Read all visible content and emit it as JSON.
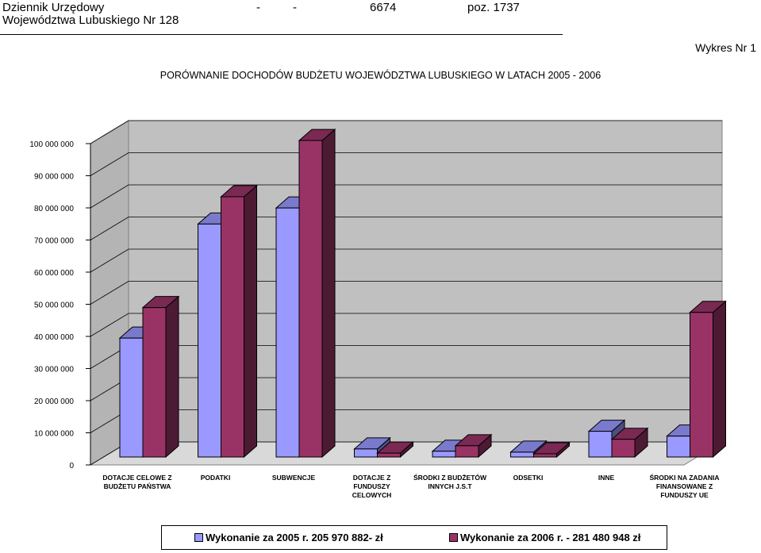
{
  "header": {
    "journal": "Dziennik Urzędowy",
    "voivodeship": "Województwa Lubuskiego Nr 128",
    "dash1": "-",
    "dash2": "-",
    "page": "6674",
    "position": "poz. 1737"
  },
  "chart_id": "Wykres Nr 1",
  "chart_data": {
    "type": "bar",
    "title": "PORÓWNANIE DOCHODÓW BUDŻETU WOJEWÓDZTWA LUBUSKIEGO W LATACH 2005 - 2006",
    "xlabel": "",
    "ylabel": "",
    "ylim": [
      0,
      100000000
    ],
    "yticks": [
      0,
      10000000,
      20000000,
      30000000,
      40000000,
      50000000,
      60000000,
      70000000,
      80000000,
      90000000,
      100000000
    ],
    "ytick_labels": [
      "0",
      "10 000 000",
      "20 000 000",
      "30 000 000",
      "40 000 000",
      "50 000 000",
      "60 000 000",
      "70 000 000",
      "80 000 000",
      "90 000 000",
      "100 000 000"
    ],
    "grid": true,
    "legend_position": "bottom",
    "categories": [
      [
        "DOTACJE CELOWE Z",
        "BUDŻETU PAŃSTWA"
      ],
      [
        "PODATKI"
      ],
      [
        "SUBWENCJE"
      ],
      [
        "DOTACJE Z",
        "FUNDUSZY",
        "CELOWYCH"
      ],
      [
        "ŚRODKI Z BUDŻETÓW",
        "INNYCH J.S.T"
      ],
      [
        "ODSETKI"
      ],
      [
        "INNE"
      ],
      [
        "ŚRODKI NA ZADANIA",
        "FINANSOWANE Z",
        "FUNDUSZY UE"
      ]
    ],
    "series": [
      {
        "name": "Wykonanie za  2005 r. 205 970 882- zł",
        "color": "#9999ff",
        "values": [
          37000000,
          72500000,
          77500000,
          2500000,
          1800000,
          1500000,
          8000000,
          6500000
        ]
      },
      {
        "name": "Wykonanie za  2006 r. - 281 480 948 zł",
        "color": "#993366",
        "values": [
          46500000,
          81000000,
          98500000,
          1200000,
          3500000,
          1000000,
          5500000,
          45000000
        ]
      }
    ]
  }
}
